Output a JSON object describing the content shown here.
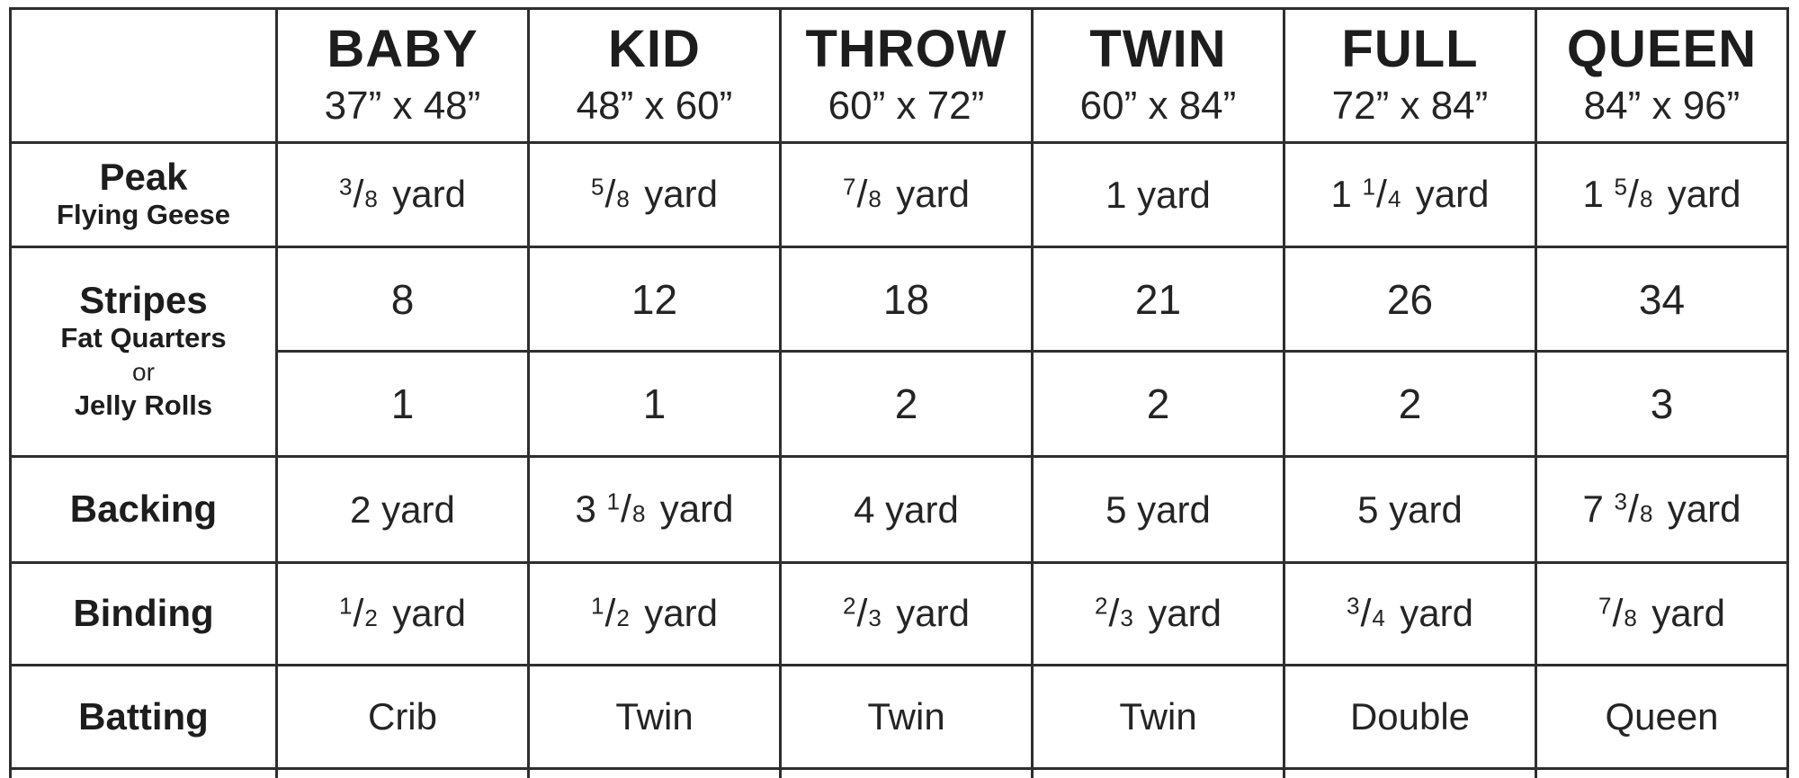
{
  "table": {
    "columns": [
      {
        "name": "BABY",
        "dims": "37” x 48”"
      },
      {
        "name": "KID",
        "dims": "48” x 60”"
      },
      {
        "name": "THROW",
        "dims": "60” x 72”"
      },
      {
        "name": "TWIN",
        "dims": "60” x 84”"
      },
      {
        "name": "FULL",
        "dims": "72” x 84”"
      },
      {
        "name": "QUEEN",
        "dims": "84” x 96”"
      }
    ],
    "rows": {
      "peak": {
        "label": "Peak",
        "sublabel": "Flying Geese",
        "values": [
          "3/8 yard",
          "5/8 yard",
          "7/8 yard",
          "1 yard",
          "1 1/4 yard",
          "1 5/8 yard"
        ]
      },
      "stripes": {
        "label": "Stripes",
        "sub": [
          "Fat Quarters",
          "or",
          "Jelly Rolls"
        ],
        "fat_quarters": [
          "8",
          "12",
          "18",
          "21",
          "26",
          "34"
        ],
        "jelly_rolls": [
          "1",
          "1",
          "2",
          "2",
          "2",
          "3"
        ]
      },
      "backing": {
        "label": "Backing",
        "values": [
          "2 yard",
          "3 1/8 yard",
          "4 yard",
          "5 yard",
          "5 yard",
          "7 3/8 yard"
        ]
      },
      "binding": {
        "label": "Binding",
        "values": [
          "1/2 yard",
          "1/2 yard",
          "2/3 yard",
          "2/3 yard",
          "3/4 yard",
          "7/8 yard"
        ]
      },
      "batting": {
        "label": "Batting",
        "values": [
          "Crib",
          "Twin",
          "Twin",
          "Twin",
          "Double",
          "Queen"
        ]
      }
    },
    "colors": {
      "border": "#2e2e2e",
      "text": "#1f1f1f",
      "background": "#ffffff"
    }
  }
}
